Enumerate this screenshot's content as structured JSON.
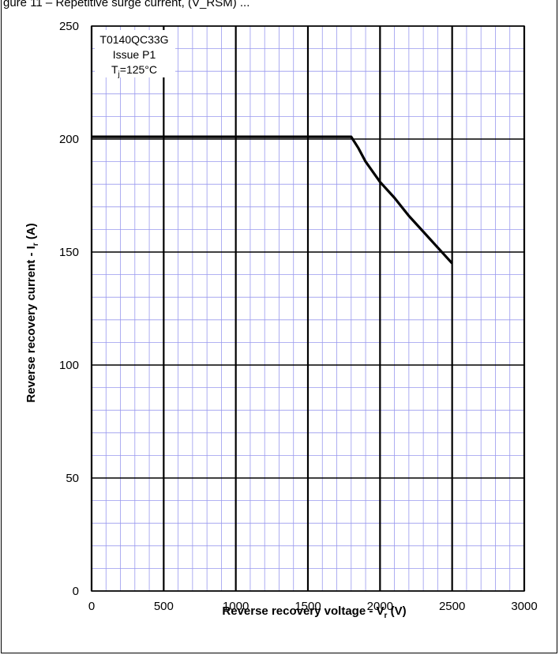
{
  "page": {
    "title": "gure 11 – Repetitive surge current, (V_RSM) ..."
  },
  "chart_data": {
    "type": "line",
    "title": "",
    "xlabel": "Reverse recovery voltage - Vr (V)",
    "ylabel": "Reverse recovery current - Ir (A)",
    "xlabel_parts": {
      "main": "Reverse recovery voltage - V",
      "sub": "r",
      "unit": " (V)"
    },
    "ylabel_parts": {
      "main": "Reverse recovery current - I",
      "sub": "r",
      "unit": " (A)"
    },
    "xlim": [
      0,
      3000
    ],
    "ylim": [
      0,
      250
    ],
    "x_ticks": [
      0,
      500,
      1000,
      1500,
      2000,
      2500,
      3000
    ],
    "y_ticks": [
      0,
      50,
      100,
      150,
      200,
      250
    ],
    "x_tick_labels": [
      "0",
      "500",
      "1000",
      "1500",
      "2000",
      "2500",
      "3000"
    ],
    "y_tick_labels": [
      "0",
      "50",
      "100",
      "150",
      "200",
      "250"
    ],
    "grid": true,
    "minor_grid_step": {
      "x": 100,
      "y": 10
    },
    "annotation": {
      "line1": "T0140QC33G",
      "line2": "Issue P1",
      "line3_main": "T",
      "line3_sub": "j",
      "line3_rest": "=125°C"
    },
    "series": [
      {
        "x": [
          0,
          1800,
          1850,
          1900,
          2000,
          2100,
          2200,
          2300,
          2400,
          2500
        ],
        "y": [
          201,
          201,
          196,
          190,
          181,
          174,
          166,
          159,
          152,
          145
        ]
      }
    ],
    "colors": {
      "line": "#000000",
      "major_grid": "#000000",
      "minor_grid": "#9999ee"
    }
  }
}
